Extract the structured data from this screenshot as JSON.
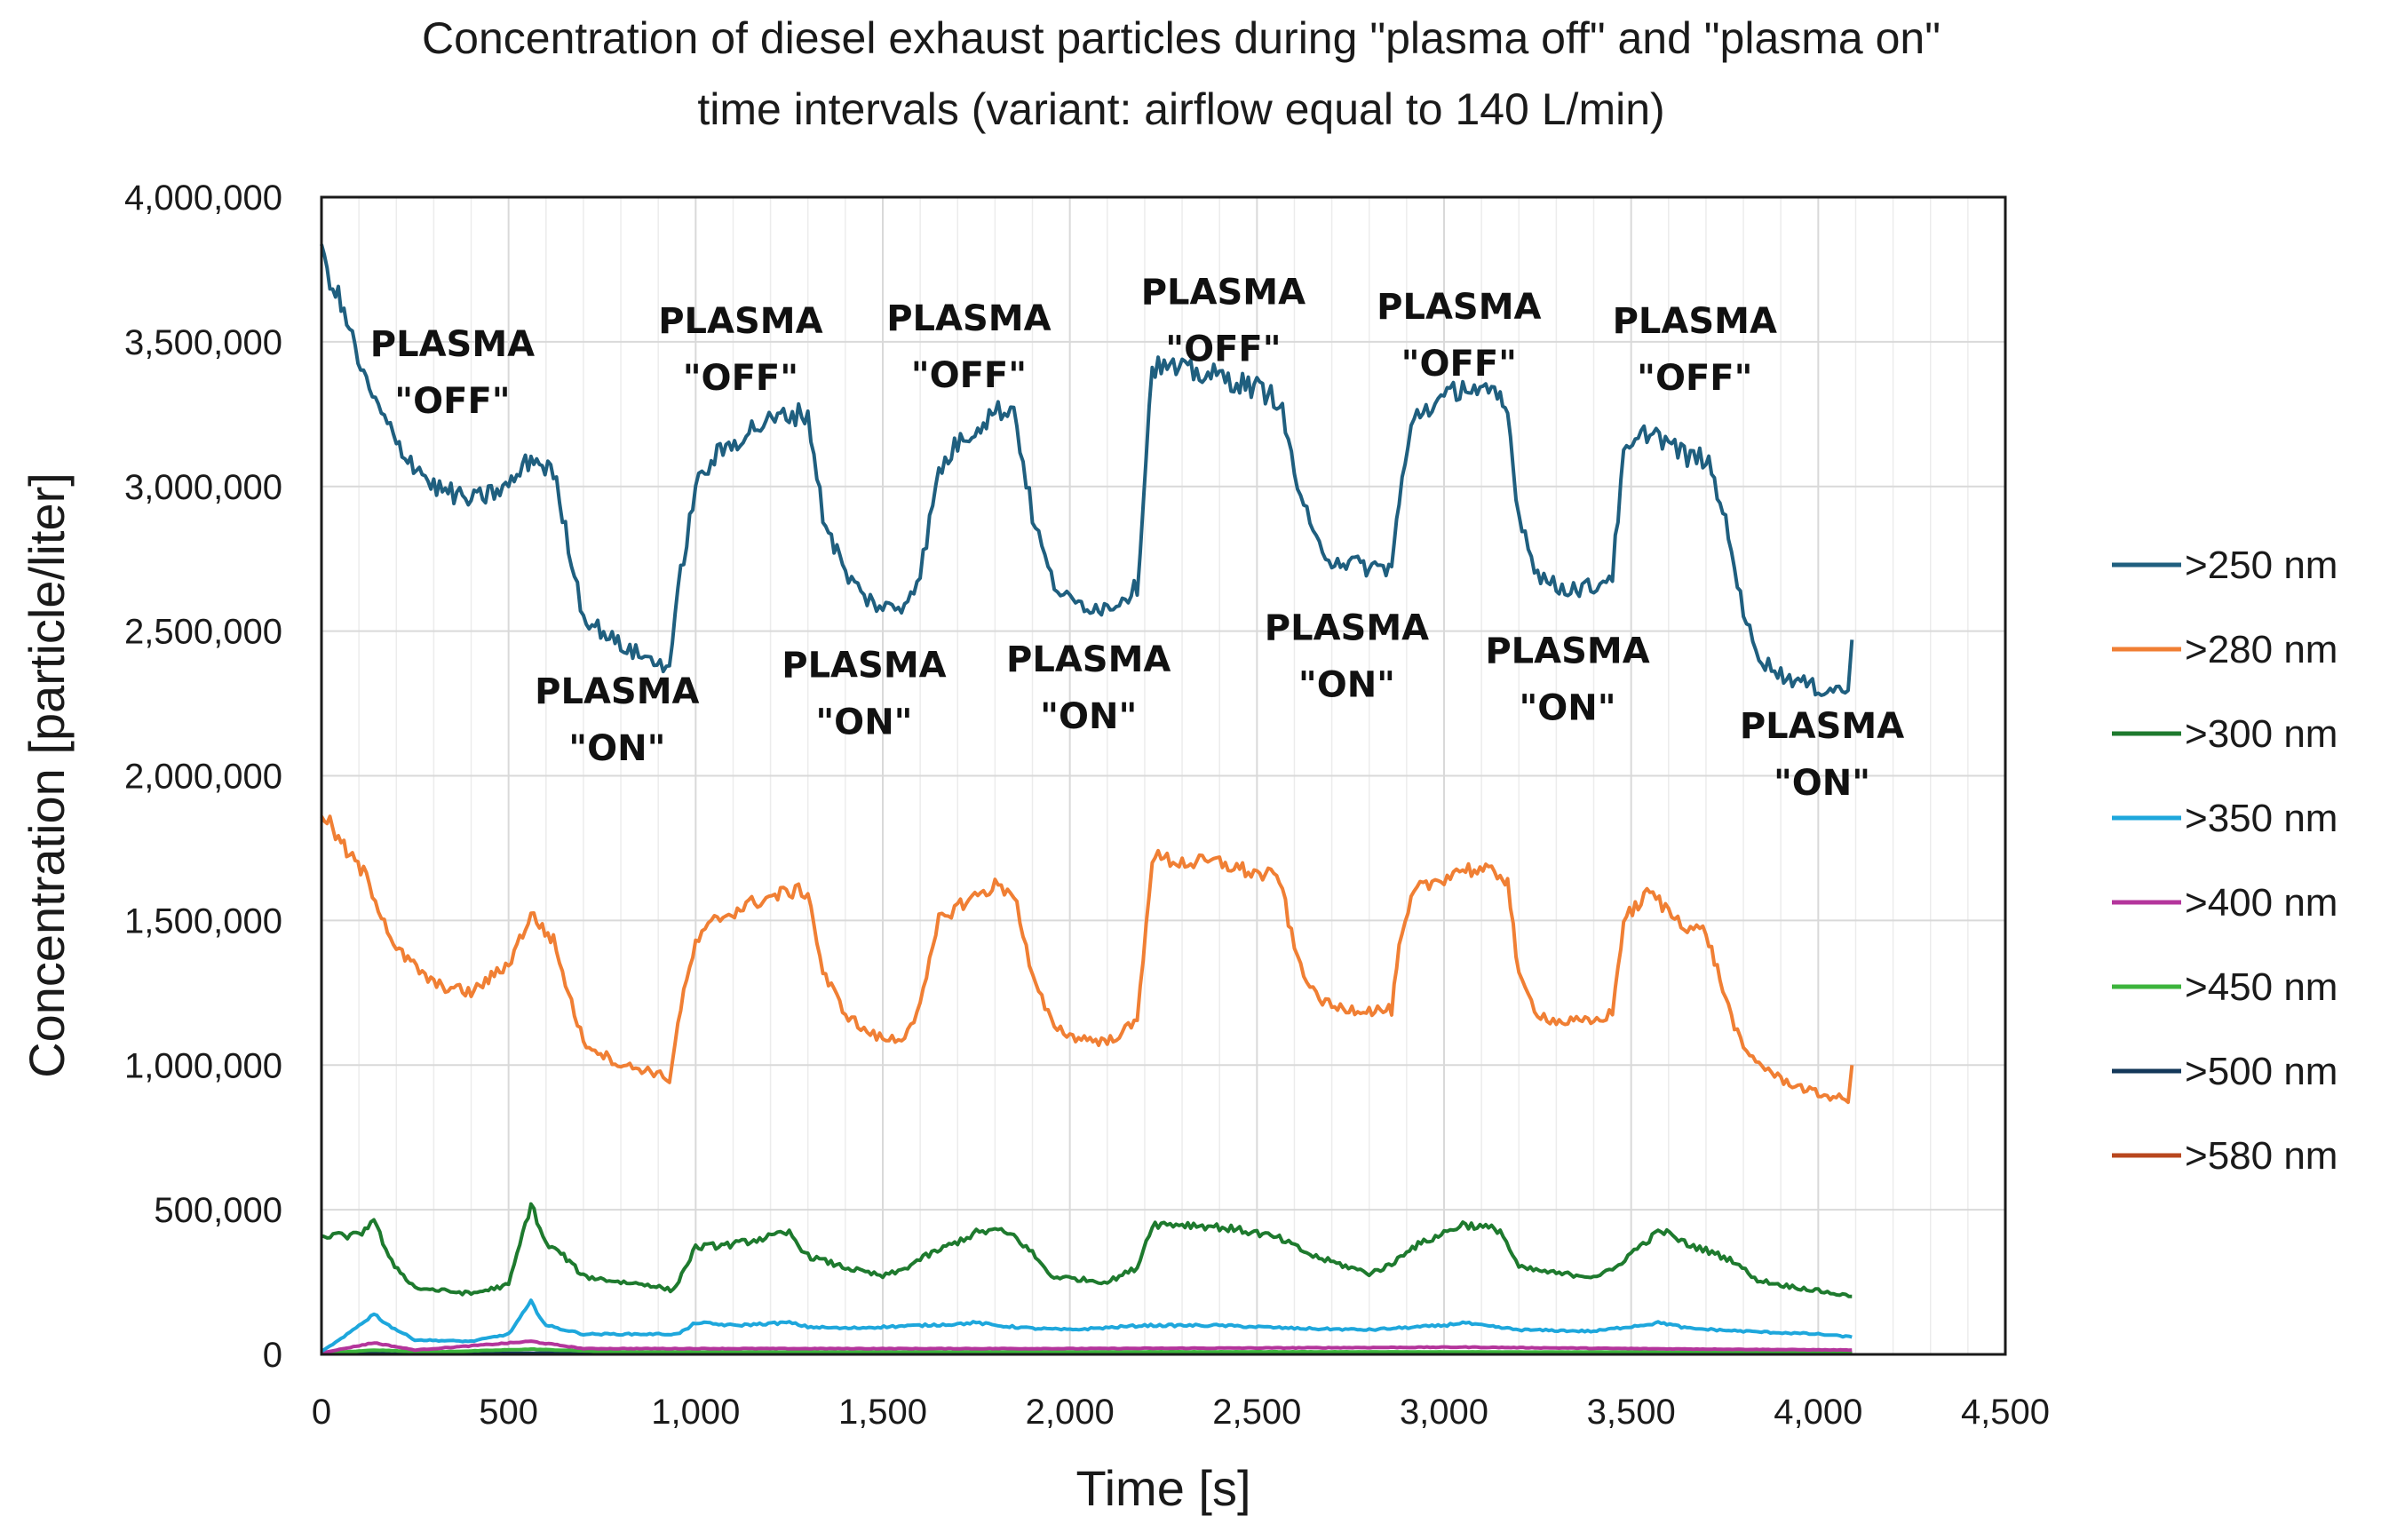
{
  "chart_data": {
    "type": "line",
    "title_lines": [
      "Concentration of diesel exhaust particles during \"plasma off\" and \"plasma on\"",
      "time intervals (variant: airflow equal to 140 L/min)"
    ],
    "xlabel": "Time [s]",
    "ylabel": "Concentration [particle/liter]",
    "xlim": [
      0,
      4500
    ],
    "ylim": [
      0,
      4000000
    ],
    "x_ticks": [
      0,
      500,
      1000,
      1500,
      2000,
      2500,
      3000,
      3500,
      4000,
      4500
    ],
    "x_tick_labels": [
      "0",
      "500",
      "1,000",
      "1,500",
      "2,000",
      "2,500",
      "3,000",
      "3,500",
      "4,000",
      "4,500"
    ],
    "y_ticks": [
      0,
      500000,
      1000000,
      1500000,
      2000000,
      2500000,
      3000000,
      3500000,
      4000000
    ],
    "y_tick_labels": [
      "0",
      "500,000",
      "1,000,000",
      "1,500,000",
      "2,000,000",
      "2,500,000",
      "3,000,000",
      "3,500,000",
      "4,000,000"
    ],
    "grid": true,
    "legend_position": "right",
    "series": [
      {
        "name": ">250 nm",
        "color": "#1f5f7f",
        "x": [
          0,
          60,
          120,
          200,
          300,
          400,
          500,
          560,
          620,
          660,
          700,
          800,
          880,
          930,
          960,
          1000,
          1050,
          1150,
          1250,
          1300,
          1340,
          1400,
          1450,
          1500,
          1550,
          1600,
          1650,
          1700,
          1800,
          1850,
          1900,
          1950,
          2000,
          2100,
          2180,
          2220,
          2300,
          2400,
          2500,
          2560,
          2600,
          2650,
          2700,
          2800,
          2860,
          2880,
          2920,
          3000,
          3050,
          3150,
          3170,
          3200,
          3250,
          3300,
          3400,
          3450,
          3480,
          3550,
          3600,
          3650,
          3700,
          3760,
          3800,
          3850,
          3900,
          4000,
          4080,
          4090
        ],
        "y": [
          3800000,
          3600000,
          3350000,
          3150000,
          3000000,
          2950000,
          3000000,
          3100000,
          3050000,
          2800000,
          2550000,
          2450000,
          2400000,
          2380000,
          2700000,
          3000000,
          3100000,
          3200000,
          3250000,
          3250000,
          2900000,
          2700000,
          2620000,
          2580000,
          2580000,
          2700000,
          3050000,
          3150000,
          3260000,
          3270000,
          2900000,
          2680000,
          2600000,
          2580000,
          2650000,
          3420000,
          3400000,
          3380000,
          3340000,
          3300000,
          3050000,
          2820000,
          2750000,
          2720000,
          2720000,
          2950000,
          3250000,
          3300000,
          3350000,
          3300000,
          3250000,
          2900000,
          2700000,
          2650000,
          2650000,
          2700000,
          3100000,
          3200000,
          3150000,
          3100000,
          3100000,
          2850000,
          2550000,
          2400000,
          2350000,
          2300000,
          2300000,
          2470000
        ]
      },
      {
        "name": ">280 nm",
        "color": "#f07f34",
        "x": [
          0,
          60,
          120,
          200,
          300,
          400,
          500,
          560,
          620,
          660,
          700,
          800,
          880,
          930,
          960,
          1000,
          1050,
          1150,
          1250,
          1300,
          1340,
          1400,
          1450,
          1500,
          1550,
          1600,
          1650,
          1700,
          1800,
          1850,
          1900,
          1950,
          2000,
          2100,
          2180,
          2220,
          2300,
          2400,
          2500,
          2560,
          2600,
          2650,
          2700,
          2800,
          2860,
          2880,
          2920,
          3000,
          3050,
          3150,
          3170,
          3200,
          3250,
          3300,
          3400,
          3450,
          3480,
          3550,
          3600,
          3650,
          3700,
          3760,
          3800,
          3850,
          3900,
          4000,
          4080,
          4090
        ],
        "y": [
          1880000,
          1750000,
          1650000,
          1400000,
          1280000,
          1250000,
          1350000,
          1520000,
          1430000,
          1250000,
          1080000,
          1000000,
          980000,
          950000,
          1200000,
          1420000,
          1500000,
          1560000,
          1600000,
          1600000,
          1320000,
          1180000,
          1120000,
          1090000,
          1090000,
          1200000,
          1500000,
          1550000,
          1620000,
          1600000,
          1300000,
          1150000,
          1100000,
          1080000,
          1150000,
          1720000,
          1700000,
          1700000,
          1660000,
          1650000,
          1400000,
          1250000,
          1200000,
          1190000,
          1190000,
          1400000,
          1600000,
          1650000,
          1680000,
          1660000,
          1640000,
          1300000,
          1180000,
          1150000,
          1150000,
          1180000,
          1500000,
          1600000,
          1530000,
          1480000,
          1460000,
          1200000,
          1050000,
          1000000,
          950000,
          900000,
          880000,
          1000000
        ]
      },
      {
        "name": ">300 nm",
        "color": "#1e7a2e",
        "x": [
          0,
          100,
          140,
          180,
          250,
          400,
          500,
          530,
          560,
          600,
          640,
          700,
          800,
          880,
          940,
          1000,
          1100,
          1250,
          1300,
          1400,
          1500,
          1550,
          1600,
          1700,
          1750,
          1800,
          1850,
          1900,
          1950,
          2100,
          2180,
          2220,
          2300,
          2400,
          2500,
          2560,
          2650,
          2800,
          2860,
          2900,
          3000,
          3050,
          3150,
          3200,
          3300,
          3400,
          3450,
          3500,
          3580,
          3650,
          3700,
          3780,
          3830,
          3900,
          4000,
          4090
        ],
        "y": [
          410000,
          410000,
          470000,
          330000,
          230000,
          210000,
          240000,
          380000,
          520000,
          380000,
          350000,
          270000,
          250000,
          240000,
          220000,
          370000,
          380000,
          420000,
          340000,
          300000,
          270000,
          290000,
          330000,
          390000,
          420000,
          430000,
          410000,
          350000,
          270000,
          250000,
          300000,
          450000,
          450000,
          440000,
          420000,
          400000,
          340000,
          280000,
          310000,
          360000,
          420000,
          450000,
          430000,
          300000,
          280000,
          270000,
          290000,
          350000,
          430000,
          380000,
          360000,
          320000,
          260000,
          240000,
          220000,
          200000
        ]
      },
      {
        "name": ">350 nm",
        "color": "#1ea7dc",
        "x": [
          0,
          60,
          100,
          140,
          180,
          250,
          400,
          500,
          560,
          600,
          700,
          950,
          980,
          1000,
          1100,
          1250,
          1300,
          1400,
          1700,
          1750,
          1800,
          1900,
          2000,
          2200,
          2400,
          2600,
          2800,
          3000,
          3050,
          3100,
          3200,
          3400,
          3580,
          3650,
          3800,
          4000,
          4090
        ],
        "y": [
          10000,
          60000,
          100000,
          140000,
          100000,
          50000,
          45000,
          70000,
          180000,
          100000,
          70000,
          70000,
          90000,
          110000,
          100000,
          110000,
          95000,
          90000,
          105000,
          110000,
          100000,
          90000,
          85000,
          100000,
          100000,
          90000,
          85000,
          100000,
          110000,
          100000,
          85000,
          80000,
          110000,
          90000,
          80000,
          70000,
          60000
        ]
      },
      {
        "name": ">400 nm",
        "color": "#b4359c",
        "x": [
          0,
          140,
          250,
          560,
          700,
          1000,
          1500,
          2000,
          2500,
          3050,
          3500,
          4090
        ],
        "y": [
          5000,
          40000,
          15000,
          45000,
          20000,
          20000,
          20000,
          20000,
          22000,
          25000,
          20000,
          15000
        ]
      },
      {
        "name": ">450 nm",
        "color": "#3cb43c",
        "x": [
          0,
          140,
          300,
          560,
          800,
          1500,
          2500,
          3500,
          4090
        ],
        "y": [
          3000,
          15000,
          8000,
          18000,
          8000,
          8000,
          9000,
          8000,
          6000
        ]
      },
      {
        "name": ">500 nm",
        "color": "#14385a",
        "x": [
          0,
          1000,
          2000,
          3000,
          4090
        ],
        "y": [
          3000,
          5000,
          5000,
          5000,
          4000
        ]
      },
      {
        "name": ">580 nm",
        "color": "#b8471e",
        "x": [
          0,
          1000,
          2000,
          3000,
          4090
        ],
        "y": [
          1500,
          2500,
          2500,
          2500,
          2000
        ]
      }
    ],
    "annotations": [
      {
        "lines": [
          "PLASMA",
          "\"OFF\""
        ],
        "x": 350,
        "y": 3450000
      },
      {
        "lines": [
          "PLASMA",
          "\"ON\""
        ],
        "x": 790,
        "y": 2250000
      },
      {
        "lines": [
          "PLASMA",
          "\"OFF\""
        ],
        "x": 1120,
        "y": 3530000
      },
      {
        "lines": [
          "PLASMA",
          "\"ON\""
        ],
        "x": 1450,
        "y": 2340000
      },
      {
        "lines": [
          "PLASMA",
          "\"OFF\""
        ],
        "x": 1730,
        "y": 3540000
      },
      {
        "lines": [
          "PLASMA",
          "\"ON\""
        ],
        "x": 2050,
        "y": 2360000
      },
      {
        "lines": [
          "PLASMA",
          "\"OFF\""
        ],
        "x": 2410,
        "y": 3630000
      },
      {
        "lines": [
          "PLASMA",
          "\"ON\""
        ],
        "x": 2740,
        "y": 2470000
      },
      {
        "lines": [
          "PLASMA",
          "\"OFF\""
        ],
        "x": 3040,
        "y": 3580000
      },
      {
        "lines": [
          "PLASMA",
          "\"ON\""
        ],
        "x": 3330,
        "y": 2390000
      },
      {
        "lines": [
          "PLASMA",
          "\"OFF\""
        ],
        "x": 3670,
        "y": 3530000
      },
      {
        "lines": [
          "PLASMA",
          "\"ON\""
        ],
        "x": 4010,
        "y": 2130000
      }
    ]
  }
}
